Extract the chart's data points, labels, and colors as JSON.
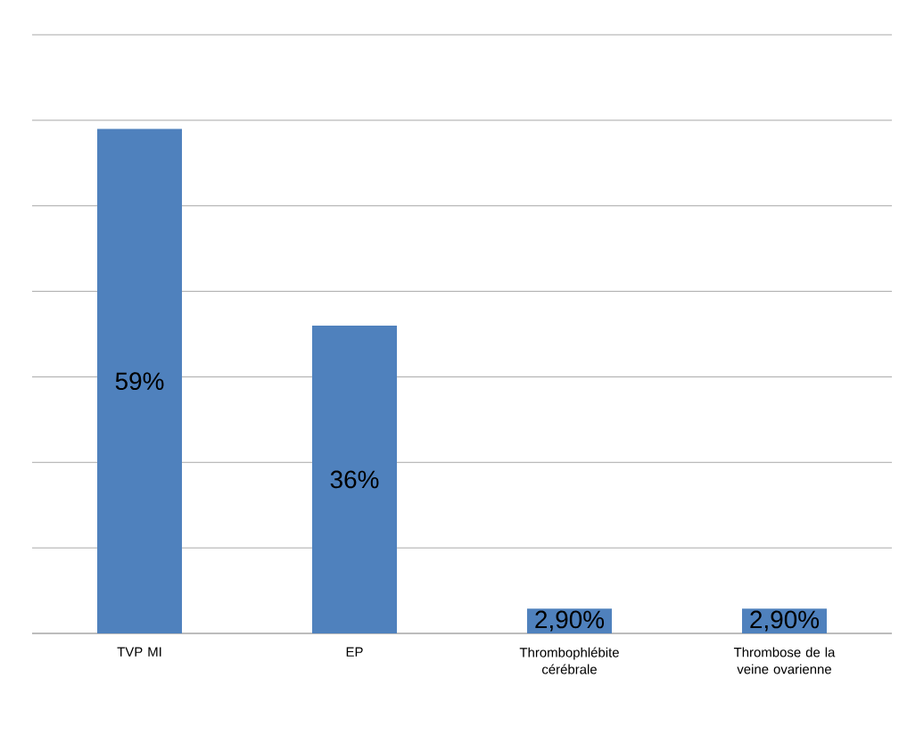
{
  "chart_data": {
    "type": "bar",
    "categories": [
      "TVP MI",
      "EP",
      "Thrombophlébite cérébrale",
      "Thrombose de la veine ovarienne"
    ],
    "values": [
      59,
      36,
      2.9,
      2.9
    ],
    "value_labels": [
      "59%",
      "36%",
      "2,90%",
      "2,90%"
    ],
    "color": "#4f81bd",
    "ylim": [
      0,
      70
    ],
    "yticks": [
      {
        "value": 0,
        "label": null
      },
      {
        "value": 10,
        "label": null
      },
      {
        "value": 20,
        "label": null
      },
      {
        "value": 30,
        "label": null
      },
      {
        "value": 40,
        "label": null
      },
      {
        "value": 50,
        "label": null
      },
      {
        "value": 60,
        "label": null
      },
      {
        "value": 70,
        "label": null
      }
    ],
    "grid": "y",
    "tick_labels": "x"
  }
}
